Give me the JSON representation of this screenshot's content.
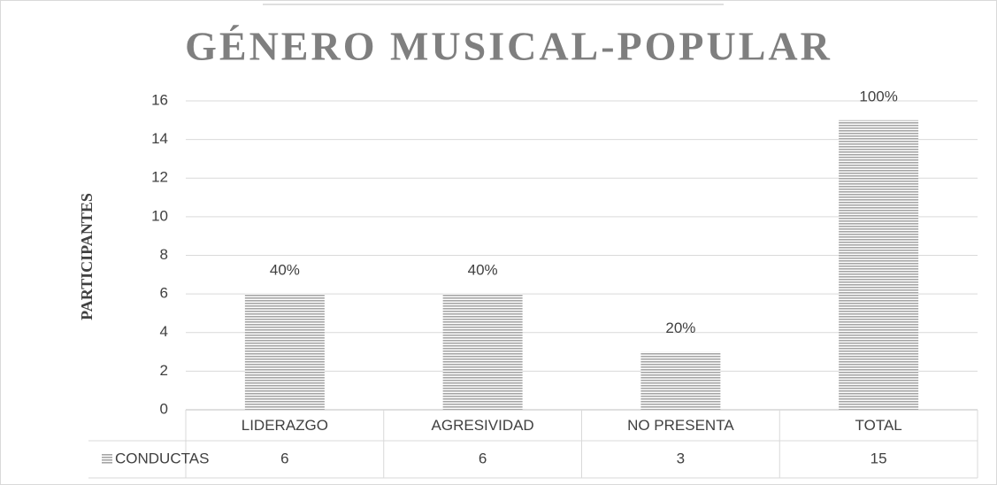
{
  "chart_data": {
    "type": "bar",
    "title": "GÉNERO MUSICAL-POPULAR",
    "y_label": "PARTICIPANTES",
    "categories": [
      "LIDERAZGO",
      "AGRESIVIDAD",
      "NO PRESENTA",
      "TOTAL"
    ],
    "series": [
      {
        "name": "CONDUCTAS",
        "color": "#a6a6a6",
        "values": [
          6,
          6,
          3,
          15
        ]
      }
    ],
    "annotations": [
      "40%",
      "40%",
      "20%",
      "100%"
    ],
    "ylim": [
      0,
      16
    ],
    "yticks": [
      0,
      2,
      4,
      6,
      8,
      10,
      12,
      14,
      16
    ],
    "grid": true,
    "data_table": true
  }
}
